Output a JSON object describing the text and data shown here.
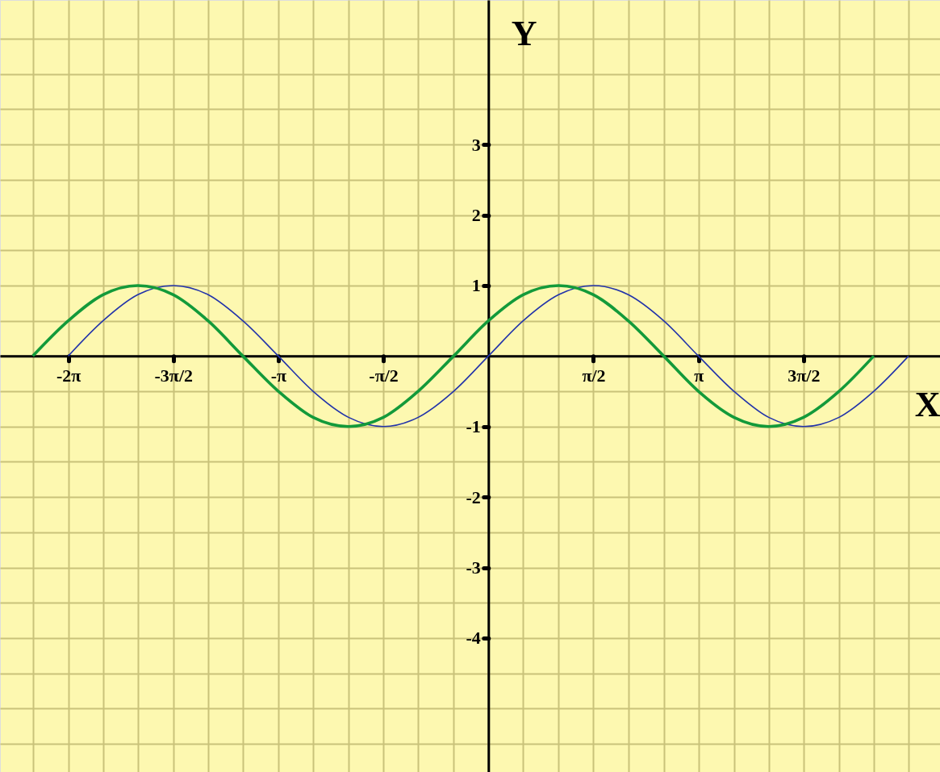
{
  "chart_data": {
    "type": "line",
    "xlabel": "X",
    "ylabel": "Y",
    "series": [
      {
        "color": "#2233aa",
        "x": [
          -6.28,
          -5.76,
          -5.24,
          -4.71,
          -4.19,
          -3.67,
          -3.14,
          -2.62,
          -2.09,
          -1.57,
          -1.05,
          -0.52,
          0,
          0.52,
          1.05,
          1.57,
          2.09,
          2.62,
          3.14,
          3.67,
          4.19,
          4.71,
          5.24,
          5.76,
          6.28
        ],
        "values": [
          0,
          0.5,
          0.87,
          1,
          0.87,
          0.5,
          0,
          -0.5,
          -0.87,
          -1,
          -0.87,
          -0.5,
          0,
          0.5,
          0.87,
          1,
          0.87,
          0.5,
          0,
          -0.5,
          -0.87,
          -1,
          -0.87,
          -0.5,
          0
        ]
      },
      {
        "color": "#139a3a",
        "x": [
          -6.81,
          -6.28,
          -5.76,
          -5.24,
          -4.71,
          -4.19,
          -3.67,
          -3.14,
          -2.62,
          -2.09,
          -1.57,
          -1.05,
          -0.52,
          0,
          0.52,
          1.05,
          1.57,
          2.09,
          2.62,
          3.14,
          3.67,
          4.19,
          4.71,
          5.24,
          5.76
        ],
        "values": [
          0,
          0.5,
          0.87,
          1,
          0.87,
          0.5,
          0,
          -0.5,
          -0.87,
          -1,
          -0.87,
          -0.5,
          0,
          0.5,
          0.87,
          1,
          0.87,
          0.5,
          0,
          -0.5,
          -0.87,
          -1,
          -0.87,
          -0.5,
          0
        ]
      }
    ],
    "xlim": [
      -7.3,
      6.75
    ],
    "ylim": [
      -5.9,
      5.05
    ],
    "xticks": [
      {
        "value": -6.81,
        "label": null
      },
      {
        "value": -6.28,
        "label": "-2π"
      },
      {
        "value": -5.76,
        "label": null
      },
      {
        "value": -5.24,
        "label": null
      },
      {
        "value": -4.71,
        "label": "-3π/2"
      },
      {
        "value": -4.19,
        "label": null
      },
      {
        "value": -3.67,
        "label": null
      },
      {
        "value": -3.14,
        "label": "-π"
      },
      {
        "value": -2.62,
        "label": null
      },
      {
        "value": -2.09,
        "label": null
      },
      {
        "value": -1.57,
        "label": "-π/2"
      },
      {
        "value": -1.05,
        "label": null
      },
      {
        "value": -0.52,
        "label": null
      },
      {
        "value": 0,
        "label": null
      },
      {
        "value": 0.52,
        "label": null
      },
      {
        "value": 1.05,
        "label": null
      },
      {
        "value": 1.57,
        "label": "π/2"
      },
      {
        "value": 2.09,
        "label": null
      },
      {
        "value": 2.62,
        "label": null
      },
      {
        "value": 3.14,
        "label": "π"
      },
      {
        "value": 3.67,
        "label": null
      },
      {
        "value": 4.19,
        "label": null
      },
      {
        "value": 4.71,
        "label": "3π/2"
      },
      {
        "value": 5.24,
        "label": null
      },
      {
        "value": 5.76,
        "label": null
      },
      {
        "value": 6.28,
        "label": null
      }
    ],
    "yticks": [
      {
        "value": -5.5,
        "label": null
      },
      {
        "value": -5,
        "label": null
      },
      {
        "value": -4.5,
        "label": null
      },
      -4,
      {
        "value": -3.5,
        "label": null
      },
      -3,
      {
        "value": -2.5,
        "label": null
      },
      -2,
      {
        "value": -1.5,
        "label": null
      },
      -1,
      {
        "value": -0.5,
        "label": null
      },
      {
        "value": 0,
        "label": null
      },
      {
        "value": 0.5,
        "label": null
      },
      1,
      {
        "value": 1.5,
        "label": null
      },
      2,
      {
        "value": 2.5,
        "label": null
      },
      3,
      {
        "value": 3.5,
        "label": null
      },
      {
        "value": 4,
        "label": null
      },
      {
        "value": 4.5,
        "label": null
      }
    ],
    "grid": true,
    "marker": "none",
    "line_style": "solid"
  }
}
